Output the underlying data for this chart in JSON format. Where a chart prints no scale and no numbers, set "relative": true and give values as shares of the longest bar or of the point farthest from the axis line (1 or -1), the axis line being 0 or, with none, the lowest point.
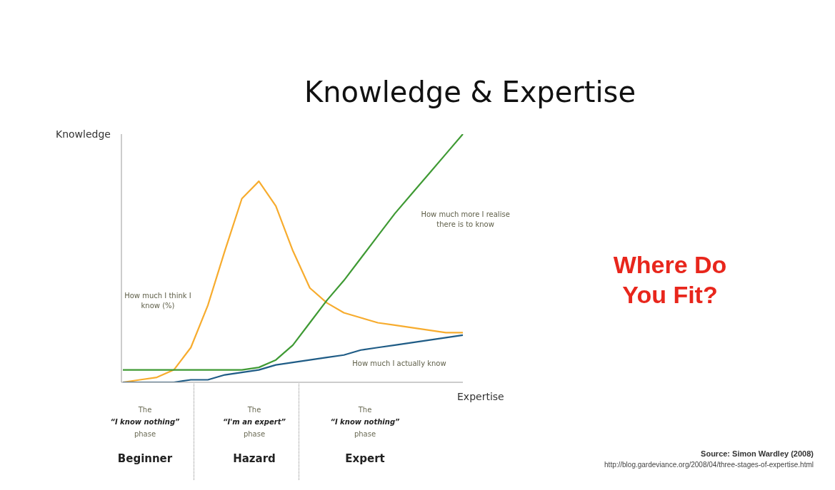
{
  "chart_data": {
    "type": "line",
    "title": "Knowledge & Expertise",
    "xlabel": "Expertise",
    "ylabel": "Knowledge",
    "relative": true,
    "grid": false,
    "legend": false,
    "marker": "none",
    "line_style": "solid",
    "categories": [
      null,
      null,
      null,
      null,
      null,
      null,
      null,
      null,
      null,
      null,
      null,
      null,
      null,
      null,
      null,
      null,
      null,
      null,
      null,
      null,
      null
    ],
    "series": [
      {
        "name": "How much I think I know (%)",
        "color": "#f7ac2e",
        "values": [
          0,
          0.01,
          0.02,
          0.05,
          0.14,
          0.31,
          0.53,
          0.74,
          0.81,
          0.71,
          0.53,
          0.38,
          0.32,
          0.28,
          0.26,
          0.24,
          0.23,
          0.22,
          0.21,
          0.2,
          0.2
        ]
      },
      {
        "name": "How much more I realise there is to know",
        "color": "#3f9a34",
        "values": [
          0.05,
          0.05,
          0.05,
          0.05,
          0.05,
          0.05,
          0.05,
          0.05,
          0.06,
          0.09,
          0.15,
          0.24,
          0.33,
          0.41,
          0.5,
          0.59,
          0.68,
          0.76,
          0.84,
          0.92,
          1
        ]
      },
      {
        "name": "How much I actually know",
        "color": "#1f5c86",
        "values": [
          0,
          0,
          0,
          0,
          0.01,
          0.01,
          0.03,
          0.04,
          0.05,
          0.07,
          0.08,
          0.09,
          0.1,
          0.11,
          0.13,
          0.14,
          0.15,
          0.16,
          0.17,
          0.18,
          0.19
        ]
      }
    ],
    "annotations": [
      "The\n“I know nothing”\nphase",
      "The\n“I'm an expert”\nphase",
      "The\n“I know nothing”\nphase",
      "Beginner",
      "Hazard",
      "Expert",
      "Where Do You Fit?",
      "Source: Simon Wardley (2008)",
      "http://blog.gardeviance.org/2008/04/three-stages-of-expertise.html"
    ]
  }
}
